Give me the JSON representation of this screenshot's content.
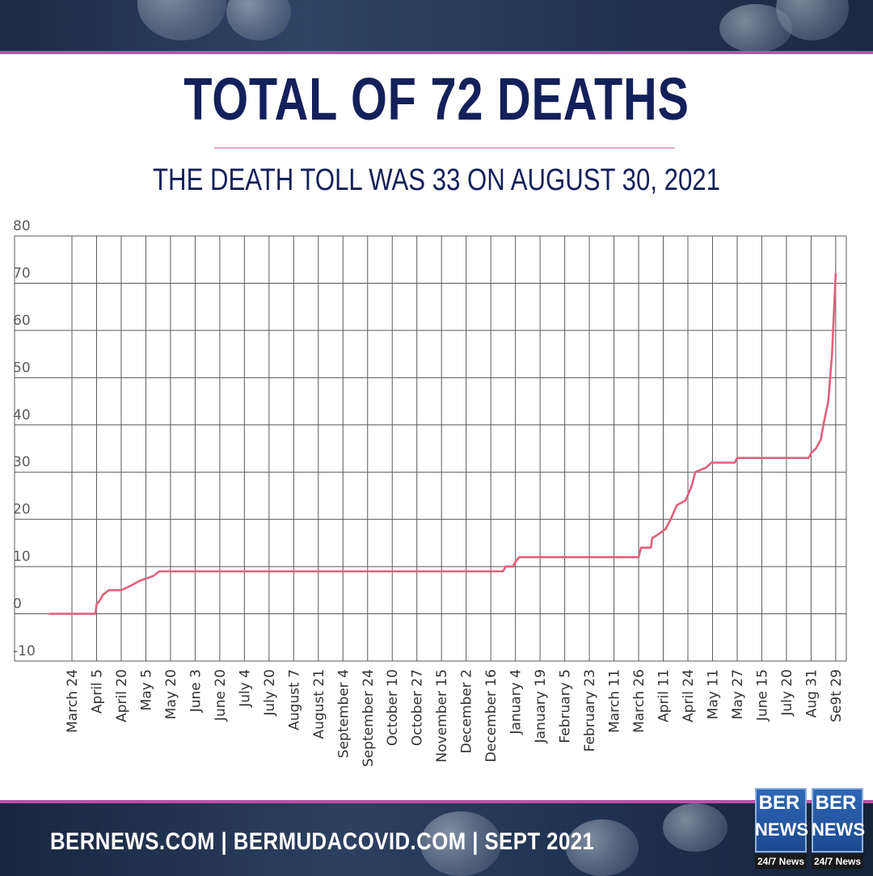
{
  "header": {
    "title": "TOTAL OF 72 DEATHS",
    "subtitle": "THE DEATH TOLL WAS 33 ON AUGUST 30, 2021"
  },
  "footer": {
    "text": "BERNEWS.COM  |  BERMUDACOVID.COM  |  SEPT  2021"
  },
  "logo": {
    "line1": "BER",
    "line2": "NEWS",
    "tagline": "24/7 News"
  },
  "colors": {
    "title": "#14205a",
    "line": "#e0607a",
    "grid": "#5a5a5a",
    "accent": "#c050a8"
  },
  "chart_data": {
    "type": "line",
    "title": "TOTAL OF 72 DEATHS",
    "xlabel": "",
    "ylabel": "",
    "ylim": [
      -10,
      80
    ],
    "yticks": [
      -10,
      0,
      10,
      20,
      30,
      40,
      50,
      60,
      70,
      80
    ],
    "grid": true,
    "legend": "none",
    "categories": [
      "March 24",
      "April 5",
      "April 20",
      "May 5",
      "May 20",
      "June 3",
      "June 20",
      "July 4",
      "July 20",
      "August 7",
      "August 21",
      "September 4",
      "September 24",
      "October 10",
      "October 27",
      "November 15",
      "December 2",
      "December 16",
      "January 4",
      "January 19",
      "February 5",
      "February 23",
      "March 11",
      "March 26",
      "April 11",
      "April 24",
      "May 11",
      "May 27",
      "June 15",
      "July 20",
      "Aug 31",
      "Se9t 29"
    ],
    "series": [
      {
        "values": [
          [
            -0.9,
            0
          ],
          [
            0.95,
            0
          ],
          [
            1.0,
            2
          ],
          [
            1.15,
            3
          ],
          [
            1.25,
            4
          ],
          [
            1.5,
            5
          ],
          [
            2.0,
            5
          ],
          [
            2.4,
            6
          ],
          [
            2.75,
            7
          ],
          [
            3.3,
            8
          ],
          [
            3.55,
            9
          ],
          [
            4.0,
            9
          ],
          [
            17.5,
            9
          ],
          [
            17.6,
            10
          ],
          [
            17.9,
            10
          ],
          [
            18.0,
            11
          ],
          [
            18.15,
            12
          ],
          [
            23.0,
            12
          ],
          [
            23.1,
            14
          ],
          [
            23.5,
            14
          ],
          [
            23.55,
            16
          ],
          [
            23.85,
            17
          ],
          [
            24.1,
            18
          ],
          [
            24.3,
            20
          ],
          [
            24.55,
            23
          ],
          [
            24.9,
            24
          ],
          [
            25.15,
            27
          ],
          [
            25.3,
            30
          ],
          [
            25.75,
            31
          ],
          [
            25.95,
            32
          ],
          [
            26.9,
            32
          ],
          [
            27.0,
            33
          ],
          [
            29.9,
            33
          ],
          [
            30.0,
            34
          ],
          [
            30.2,
            35
          ],
          [
            30.4,
            37
          ],
          [
            30.5,
            40
          ],
          [
            30.7,
            45
          ],
          [
            30.85,
            55
          ],
          [
            31.0,
            72
          ]
        ]
      }
    ]
  }
}
